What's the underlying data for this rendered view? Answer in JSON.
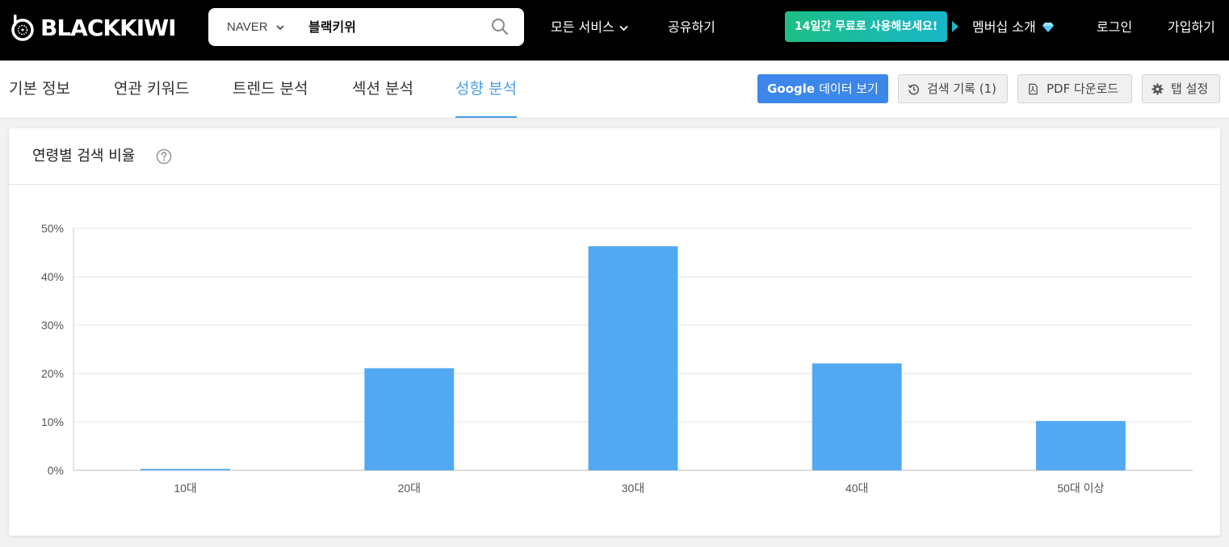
{
  "header": {
    "logo_text": "BLACKKIWI",
    "search": {
      "engine": "NAVER",
      "query": "블랙키위"
    },
    "all_services": "모든 서비스",
    "share": "공유하기",
    "promo": "14일간 무료로 사용해보세요!",
    "membership": "멤버십 소개",
    "login": "로그인",
    "signup": "가입하기"
  },
  "tabs": [
    {
      "label": "기본 정보"
    },
    {
      "label": "연관 키워드"
    },
    {
      "label": "트렌드 분석"
    },
    {
      "label": "섹션 분석"
    },
    {
      "label": "성향 분석",
      "active": true
    }
  ],
  "actions": {
    "google_brand": "Google",
    "google_rest": "데이터 보기",
    "history": "검색 기록 (1)",
    "pdf": "PDF 다운로드",
    "tab_settings": "탭 설정"
  },
  "card": {
    "title": "연령별 검색 비율"
  },
  "colors": {
    "accent": "#4a9ee8",
    "bar": "#53a8f2",
    "google_button": "#3d86ea",
    "promo_start": "#1dbf85",
    "promo_end": "#19b6c8"
  },
  "icons": {
    "logo": "kiwi-logo-icon",
    "dropdown": "chevron-down-icon",
    "search": "search-icon",
    "membership": "diamond-icon",
    "history": "history-icon",
    "pdf": "pdf-file-icon",
    "settings": "gear-icon",
    "help": "question-circle-icon"
  },
  "chart_data": {
    "type": "bar",
    "categories": [
      "10대",
      "20대",
      "30대",
      "40대",
      "50대 이상"
    ],
    "values": [
      0.3,
      21.1,
      46.3,
      22.1,
      10.2
    ],
    "ylim": [
      0,
      50
    ],
    "yticks": [
      0,
      10,
      20,
      30,
      40,
      50
    ],
    "ytick_labels": [
      "0%",
      "10%",
      "20%",
      "30%",
      "40%",
      "50%"
    ],
    "grid": true,
    "legend": "none"
  }
}
